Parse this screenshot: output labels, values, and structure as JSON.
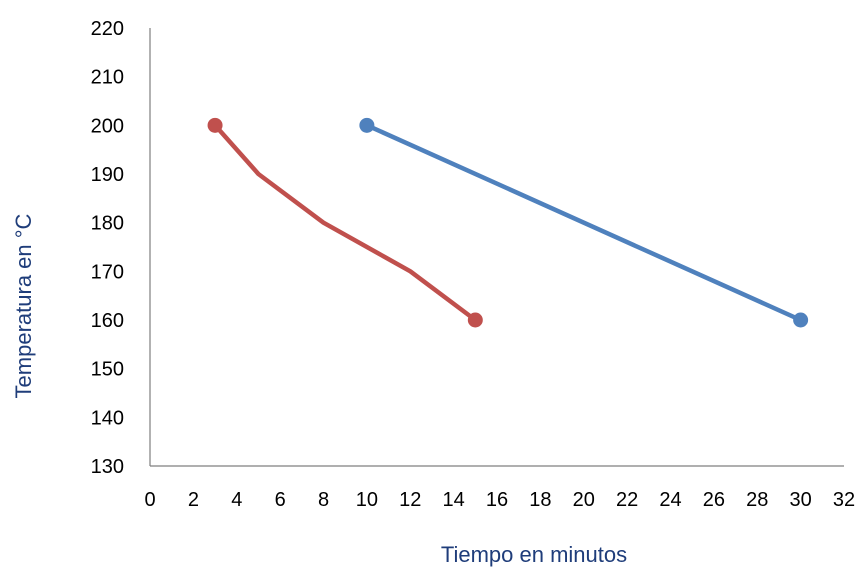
{
  "chart_data": {
    "type": "line",
    "title": "",
    "xlabel": "Tiempo en minutos",
    "ylabel": "Temperatura en °C",
    "xlim": [
      0,
      32
    ],
    "ylim": [
      130,
      220
    ],
    "xticks": [
      0,
      2,
      4,
      6,
      8,
      10,
      12,
      14,
      16,
      18,
      20,
      22,
      24,
      26,
      28,
      30,
      32
    ],
    "yticks": [
      130,
      140,
      150,
      160,
      170,
      180,
      190,
      200,
      210,
      220
    ],
    "grid": false,
    "legend": "none",
    "series": [
      {
        "color": "#c0504d",
        "points": [
          [
            3,
            200
          ],
          [
            5,
            190
          ],
          [
            8,
            180
          ],
          [
            12,
            170
          ],
          [
            15,
            160
          ]
        ],
        "markers_at": [
          0,
          4
        ]
      },
      {
        "color": "#4f81bd",
        "points": [
          [
            10,
            200
          ],
          [
            30,
            160
          ]
        ],
        "markers_at": [
          0,
          1
        ]
      }
    ]
  }
}
